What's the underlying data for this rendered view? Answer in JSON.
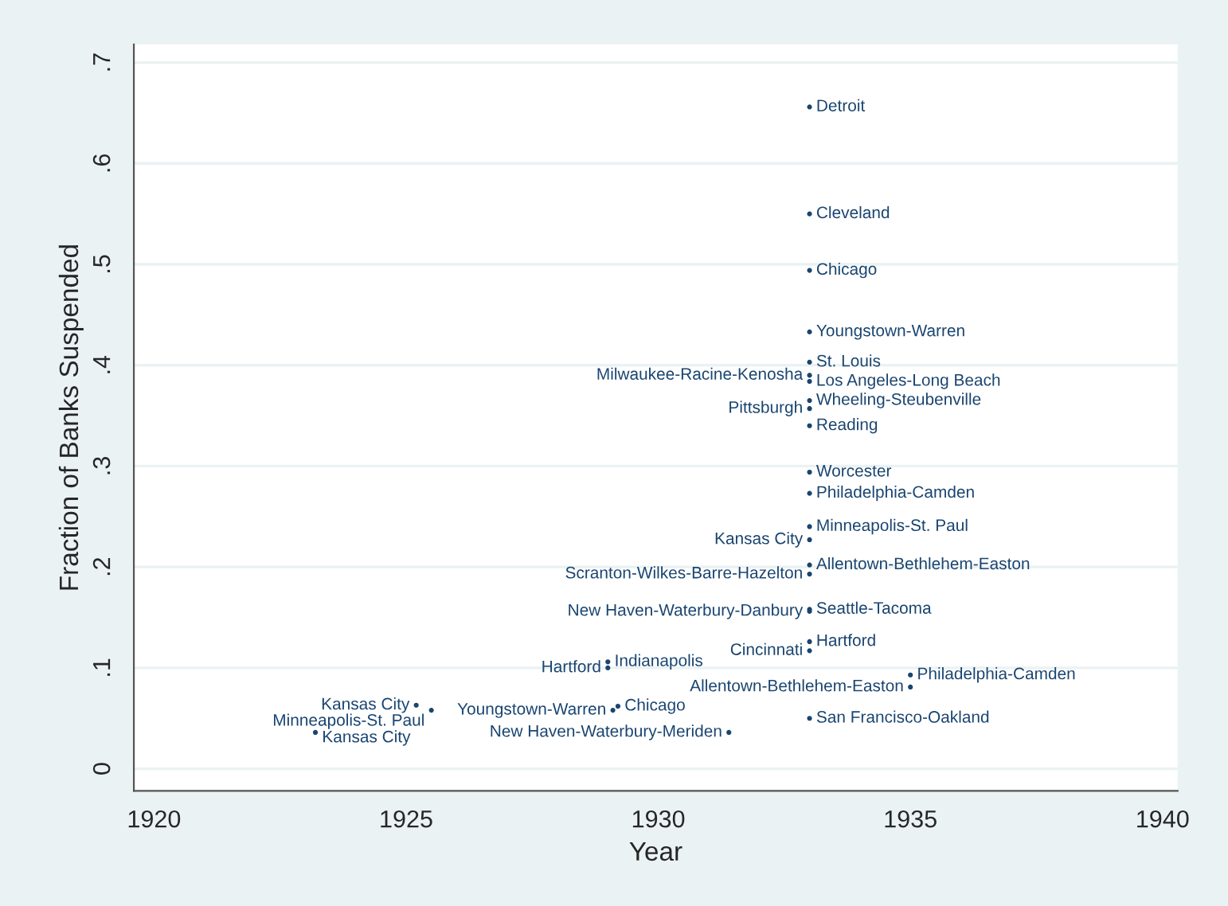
{
  "chart_data": {
    "type": "scatter",
    "xlabel": "Year",
    "ylabel": "Fraction of Banks Suspended",
    "xlim": [
      1919.6,
      1940.3
    ],
    "xticks": [
      1920,
      1925,
      1930,
      1935,
      1940
    ],
    "ylim": [
      -0.022,
      0.718
    ],
    "yticks": [
      0,
      {
        "value": 0.1,
        "label": ".1"
      },
      {
        "value": 0.2,
        "label": ".2"
      },
      {
        "value": 0.3,
        "label": ".3"
      },
      {
        "value": 0.4,
        "label": ".4"
      },
      {
        "value": 0.5,
        "label": ".5"
      },
      {
        "value": 0.6,
        "label": ".6"
      },
      {
        "value": 0.7,
        "label": ".7"
      }
    ],
    "grid": "y",
    "marker": "circle",
    "series": [
      {
        "color": "#1a4570",
        "x": [
          1933,
          1933,
          1933,
          1933,
          1933,
          1933,
          1933,
          1933,
          1933,
          1933,
          1933,
          1933,
          1933,
          1933,
          1933,
          1933,
          1933,
          1933,
          1933,
          1933,
          1935,
          1935,
          1929,
          1929,
          1929.2,
          1929.1,
          1933,
          1925.2,
          1925.5,
          1923.2,
          1931.4
        ],
        "values": [
          0.656,
          0.55,
          0.494,
          0.433,
          0.403,
          0.39,
          0.384,
          0.365,
          0.357,
          0.34,
          0.294,
          0.273,
          0.24,
          0.227,
          0.202,
          0.193,
          0.158,
          0.156,
          0.126,
          0.117,
          0.093,
          0.081,
          0.106,
          0.1,
          0.062,
          0.058,
          0.05,
          0.063,
          0.058,
          0.036,
          0.036
        ],
        "value_labels": [
          "Detroit",
          "Cleveland",
          "Chicago",
          "Youngstown-Warren",
          "St. Louis",
          "Milwaukee-Racine-Kenosha",
          "Los Angeles-Long Beach",
          "Wheeling-Steubenville",
          "Pittsburgh",
          "Reading",
          "Worcester",
          "Philadelphia-Camden",
          "Minneapolis-St. Paul",
          "Kansas City",
          "Allentown-Bethlehem-Easton",
          "Scranton-Wilkes-Barre-Hazelton",
          "Seattle-Tacoma",
          "New Haven-Waterbury-Danbury",
          "Hartford",
          "Cincinnati",
          "Philadelphia-Camden",
          "Allentown-Bethlehem-Easton",
          "Indianapolis",
          "Hartford",
          "Chicago",
          "Youngstown-Warren",
          "San Francisco-Oakland",
          "Kansas City",
          "Minneapolis-St. Paul",
          "Kansas City",
          "New Haven-Waterbury-Meriden"
        ]
      }
    ]
  }
}
